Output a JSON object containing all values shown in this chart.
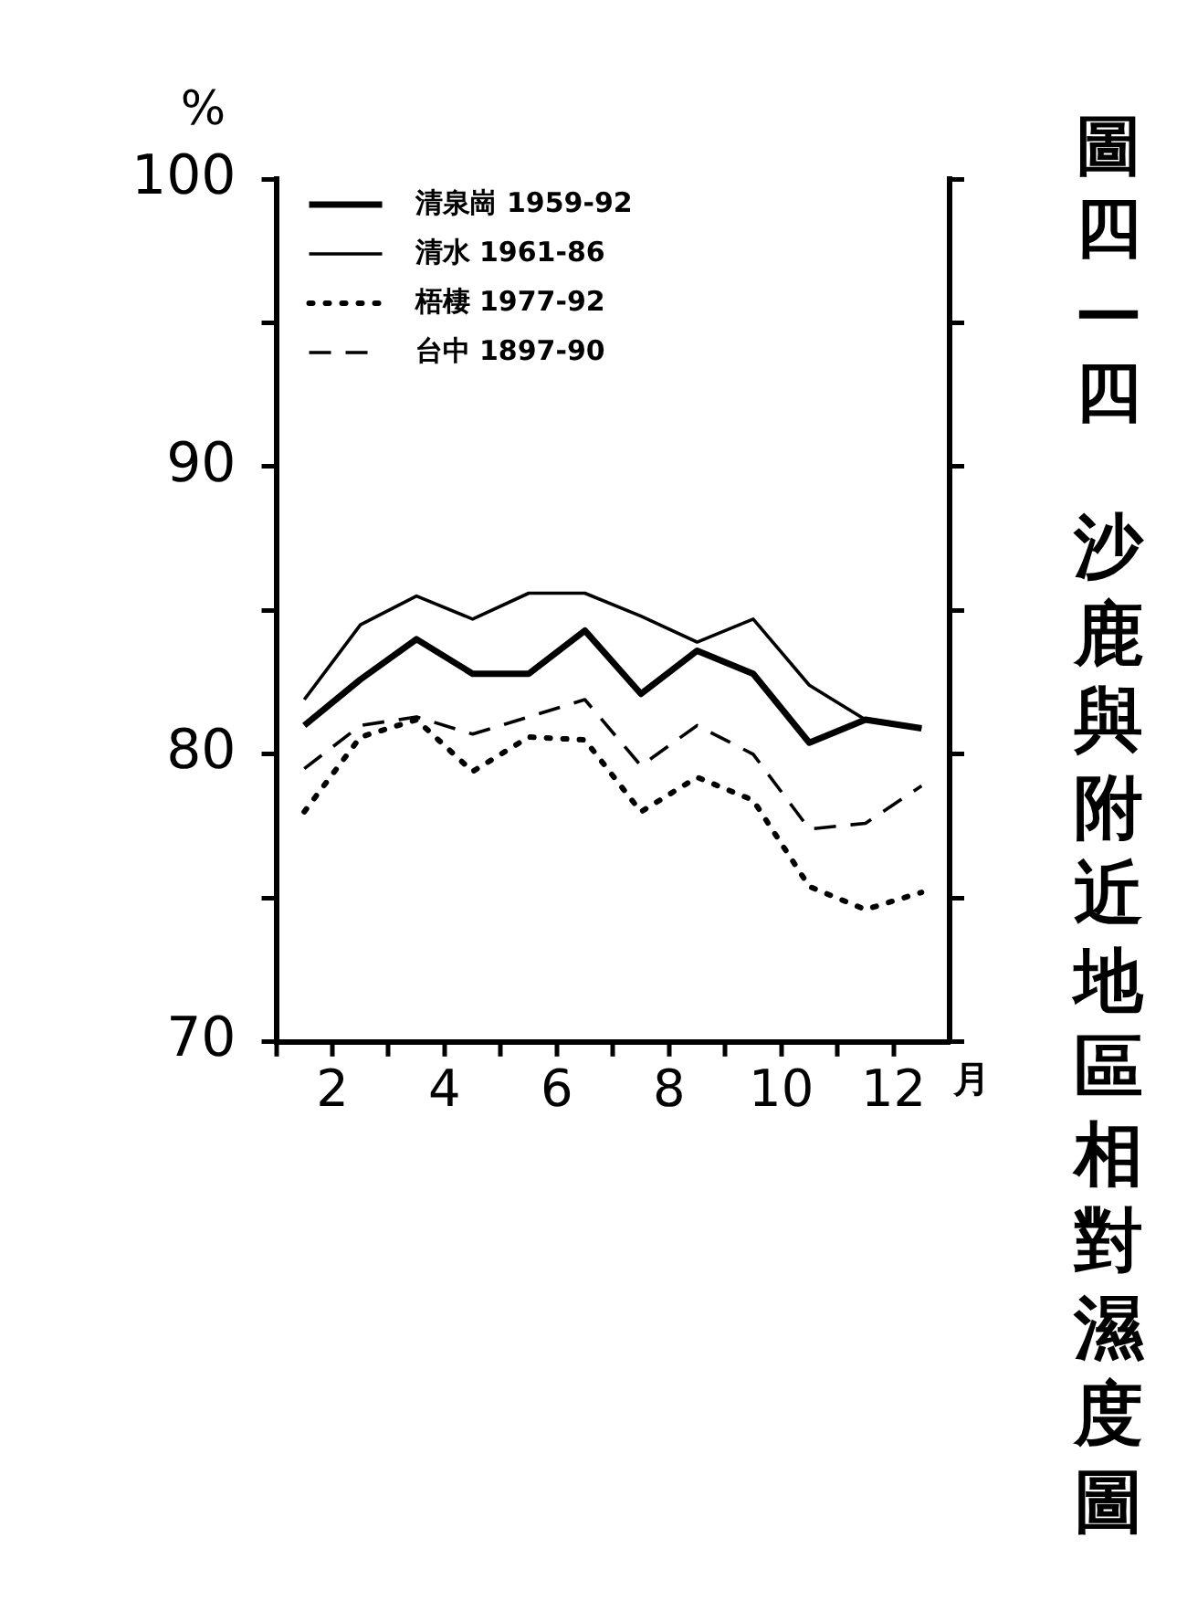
{
  "chart_data": {
    "type": "line",
    "title": "圖四—四",
    "subtitle": "沙鹿與附近地區相對濕度圖",
    "ylabel": "%",
    "xlabel": "月",
    "x": [
      1.5,
      2.5,
      3.5,
      4.5,
      5.5,
      6.5,
      7.5,
      8.5,
      9.5,
      10.5,
      11.5,
      12.5
    ],
    "xlim": [
      1,
      13
    ],
    "xticks": [
      {
        "value": 1,
        "label": null
      },
      2,
      {
        "value": 3,
        "label": null
      },
      4,
      {
        "value": 5,
        "label": null
      },
      6,
      {
        "value": 7,
        "label": null
      },
      8,
      {
        "value": 9,
        "label": null
      },
      10,
      {
        "value": 11,
        "label": null
      },
      12
    ],
    "ylim": [
      70,
      100
    ],
    "yticks": [
      70,
      {
        "value": 75,
        "label": null
      },
      80,
      {
        "value": 85,
        "label": null
      },
      90,
      {
        "value": 95,
        "label": null
      },
      100
    ],
    "grid": false,
    "legend": "top left",
    "marker": "none",
    "series": [
      {
        "name": "清泉崗 1959-92",
        "color": "#000000",
        "line_style": "solid",
        "values": [
          81.0,
          82.6,
          84.0,
          82.8,
          82.8,
          84.3,
          82.1,
          83.6,
          82.8,
          80.4,
          81.2,
          80.9
        ]
      },
      {
        "name": "清水 1961-86",
        "color": "#000000",
        "line_style": "solid",
        "values": [
          81.9,
          84.5,
          85.5,
          84.7,
          85.6,
          85.6,
          84.8,
          83.9,
          84.7,
          82.4,
          81.2,
          80.9
        ]
      },
      {
        "name": "梧棲 1977-92",
        "color": "#000000",
        "line_style": "dotted",
        "values": [
          78.0,
          80.6,
          81.2,
          79.4,
          80.6,
          80.5,
          78.0,
          79.2,
          78.4,
          75.4,
          74.6,
          75.2
        ]
      },
      {
        "name": "台中 1897-90",
        "color": "#000000",
        "line_style": "dashed",
        "values": [
          79.5,
          81.0,
          81.3,
          80.7,
          81.3,
          81.9,
          79.6,
          81.0,
          80.0,
          77.4,
          77.6,
          78.9
        ]
      }
    ]
  }
}
